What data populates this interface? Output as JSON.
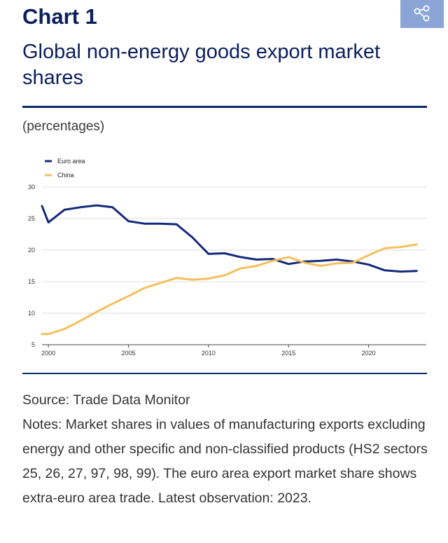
{
  "header": {
    "chart_label": "Chart 1",
    "share_icon": "share-icon"
  },
  "chart_data": {
    "type": "line",
    "title": "Global non-energy goods export market shares",
    "units": "(percentages)",
    "xlabel": "",
    "ylabel": "",
    "xlim": [
      1999.6,
      2023.6
    ],
    "ylim": [
      5,
      30
    ],
    "yticks": [
      5,
      10,
      15,
      20,
      25,
      30
    ],
    "xticks": [
      2000,
      2005,
      2010,
      2015,
      2020
    ],
    "legend_position": "top-left",
    "series": [
      {
        "name": "Euro area",
        "color": "#15297a",
        "x": [
          1999.6,
          2000,
          2001,
          2002,
          2003,
          2004,
          2005,
          2006,
          2007,
          2008,
          2009,
          2010,
          2011,
          2012,
          2013,
          2014,
          2015,
          2016,
          2017,
          2018,
          2019,
          2020,
          2021,
          2022,
          2023
        ],
        "values": [
          27.0,
          24.4,
          26.4,
          26.8,
          27.1,
          26.8,
          24.6,
          24.2,
          24.2,
          24.1,
          22.0,
          19.4,
          19.5,
          18.9,
          18.5,
          18.6,
          17.8,
          18.2,
          18.3,
          18.5,
          18.2,
          17.7,
          16.8,
          16.6,
          16.7
        ]
      },
      {
        "name": "China",
        "color": "#f4c05c",
        "x": [
          1999.6,
          2000,
          2001,
          2002,
          2003,
          2004,
          2005,
          2006,
          2007,
          2008,
          2009,
          2010,
          2011,
          2012,
          2013,
          2014,
          2015,
          2016,
          2017,
          2018,
          2019,
          2020,
          2021,
          2022,
          2023
        ],
        "values": [
          6.7,
          6.7,
          7.5,
          8.8,
          10.2,
          11.5,
          12.7,
          14.0,
          14.8,
          15.6,
          15.3,
          15.5,
          16.0,
          17.1,
          17.5,
          18.3,
          18.9,
          18.0,
          17.5,
          17.9,
          18.0,
          19.2,
          20.3,
          20.5,
          20.9
        ]
      }
    ]
  },
  "footer": {
    "source": "Source: Trade Data Monitor",
    "notes": "Notes: Market shares in values of manufacturing exports excluding energy and other specific and non-classified products (HS2 sectors 25, 26, 27, 97, 98, 99). The euro area export market share shows extra-euro area trade. Latest observation: 2023."
  }
}
